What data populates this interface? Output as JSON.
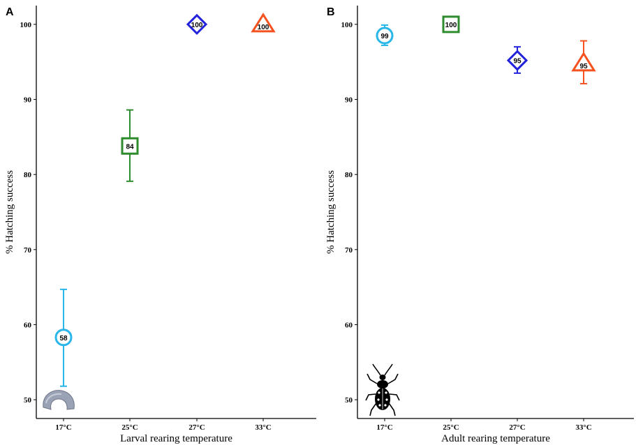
{
  "chart_data": [
    {
      "panel": "A",
      "type": "scatter",
      "xlabel": "Larval rearing temperature",
      "ylabel": "% Hatching success",
      "categories": [
        "17°C",
        "25°C",
        "27°C",
        "33°C"
      ],
      "ylim": [
        47.5,
        102.5
      ],
      "yticks": [
        50,
        60,
        70,
        80,
        90,
        100
      ],
      "points": [
        {
          "category": "17°C",
          "value": 58.3,
          "label": "58",
          "err_low": 51.8,
          "err_high": 64.7,
          "marker": "circle",
          "color": "#29b6e8"
        },
        {
          "category": "25°C",
          "value": 83.8,
          "label": "84",
          "err_low": 79.1,
          "err_high": 88.6,
          "marker": "square",
          "color": "#2e8b2e"
        },
        {
          "category": "27°C",
          "value": 100,
          "label": "100",
          "marker": "diamond",
          "color": "#2222dd"
        },
        {
          "category": "33°C",
          "value": 100,
          "label": "100",
          "marker": "triangle",
          "color": "#f5521f"
        }
      ],
      "icon": "larva-icon"
    },
    {
      "panel": "B",
      "type": "scatter",
      "xlabel": "Adult rearing temperature",
      "ylabel": "% Hatching success",
      "categories": [
        "17°C",
        "25°C",
        "27°C",
        "33°C"
      ],
      "ylim": [
        47.5,
        102.5
      ],
      "yticks": [
        50,
        60,
        70,
        80,
        90,
        100
      ],
      "points": [
        {
          "category": "17°C",
          "value": 98.5,
          "label": "99",
          "err_low": 97.2,
          "err_high": 99.9,
          "marker": "circle",
          "color": "#29b6e8"
        },
        {
          "category": "25°C",
          "value": 100,
          "label": "100",
          "marker": "square",
          "color": "#2e8b2e"
        },
        {
          "category": "27°C",
          "value": 95.2,
          "label": "95",
          "err_low": 93.5,
          "err_high": 97.0,
          "marker": "diamond",
          "color": "#2222dd"
        },
        {
          "category": "33°C",
          "value": 94.8,
          "label": "95",
          "err_low": 92.1,
          "err_high": 97.8,
          "marker": "triangle",
          "color": "#f5521f"
        }
      ],
      "icon": "beetle-icon"
    }
  ]
}
